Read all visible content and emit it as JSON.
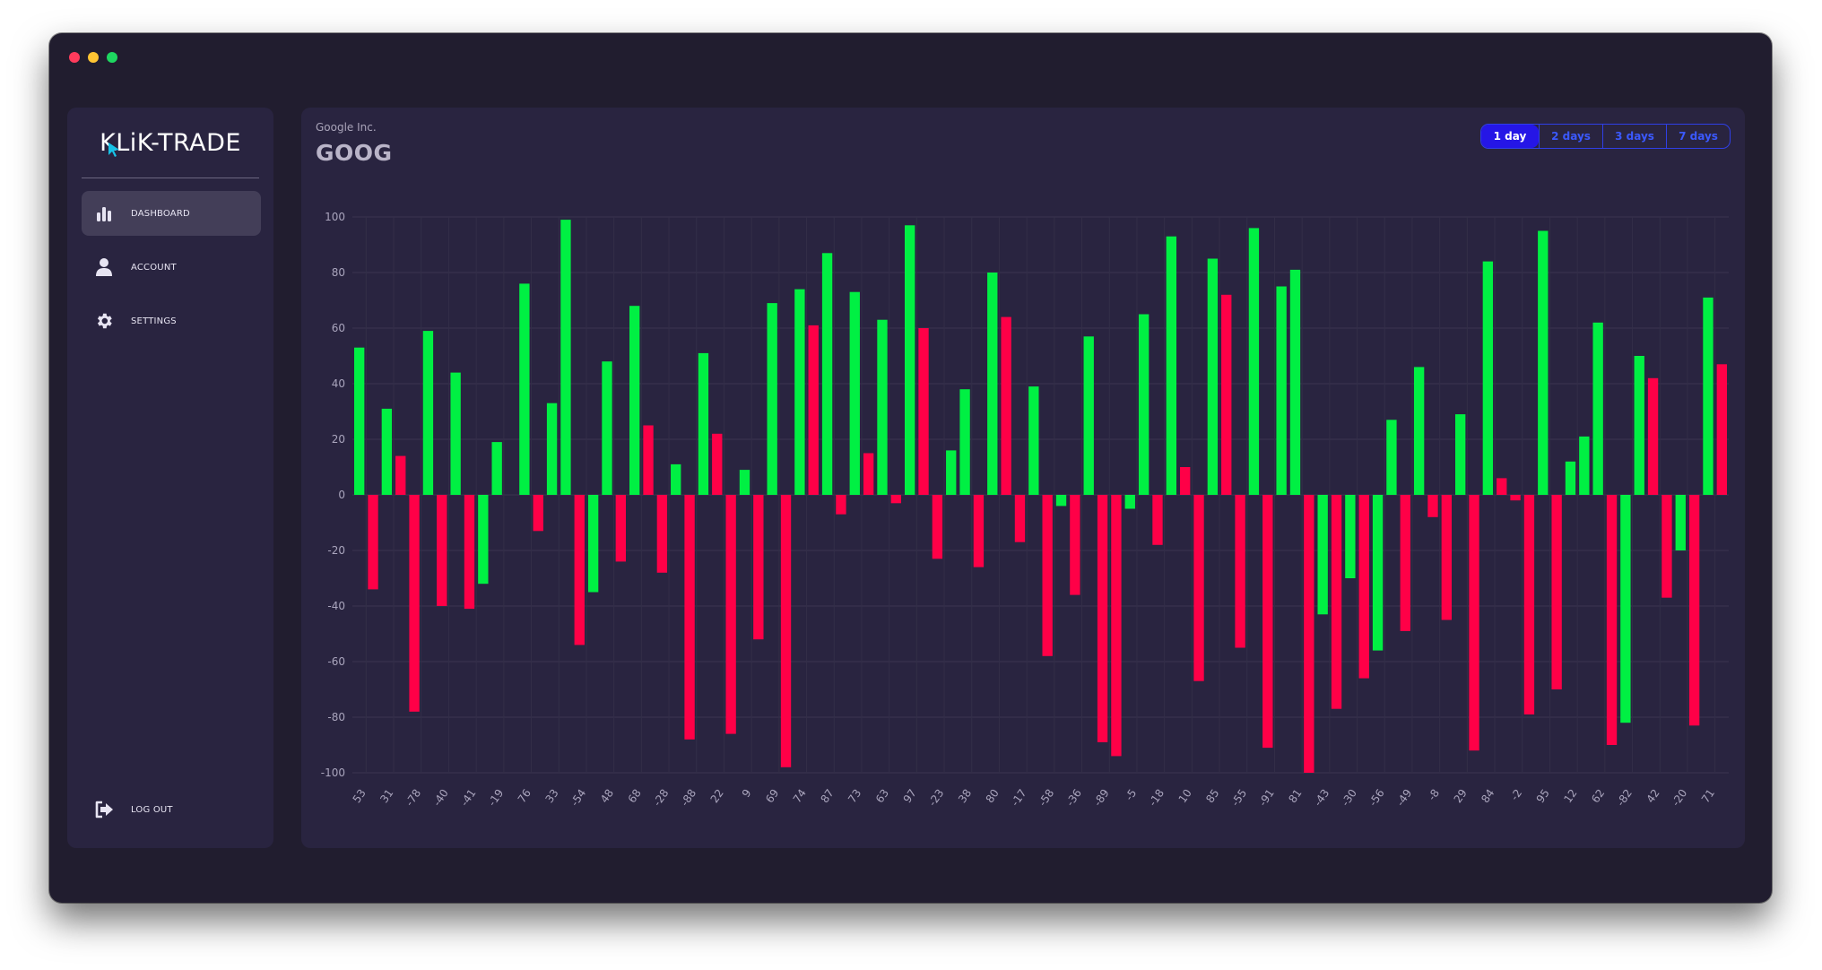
{
  "window": {
    "traffic_lights": [
      "#ff3b5c",
      "#ffc533",
      "#1ed760"
    ]
  },
  "sidebar": {
    "logo_text": "KLiK-TRADE",
    "items": [
      {
        "label": "DASHBOARD",
        "icon": "bar-chart-icon",
        "active": true
      },
      {
        "label": "ACCOUNT",
        "icon": "user-icon",
        "active": false
      },
      {
        "label": "SETTINGS",
        "icon": "gear-icon",
        "active": false
      }
    ],
    "logout_label": "LOG OUT",
    "logout_icon": "logout-icon"
  },
  "main": {
    "company": "Google Inc.",
    "ticker": "GOOG",
    "ranges": [
      {
        "label": "1 day",
        "active": true
      },
      {
        "label": "2 days",
        "active": false
      },
      {
        "label": "3 days",
        "active": false
      },
      {
        "label": "7 days",
        "active": false
      }
    ]
  },
  "colors": {
    "up": "#00f043",
    "down": "#ff0047",
    "accent": "#2516e6"
  },
  "chart_data": {
    "type": "bar",
    "title": "",
    "xlabel": "",
    "ylabel": "",
    "ylim": [
      -100,
      100
    ],
    "yticks": [
      100,
      80,
      60,
      40,
      20,
      0,
      -20,
      -40,
      -60,
      -80,
      -100
    ],
    "grid": true,
    "categories": [
      "53",
      "31",
      "-78",
      "-40",
      "-41",
      "-19",
      "76",
      "33",
      "-54",
      "48",
      "68",
      "-28",
      "-88",
      "22",
      "9",
      "69",
      "74",
      "87",
      "73",
      "63",
      "97",
      "-23",
      "38",
      "80",
      "-17",
      "-58",
      "-36",
      "-89",
      "-5",
      "-18",
      "10",
      "85",
      "-55",
      "-91",
      "81",
      "-43",
      "-30",
      "-56",
      "-49",
      "-8",
      "29",
      "84",
      "-2",
      "95",
      "12",
      "62",
      "-82",
      "42",
      "-20",
      "71"
    ],
    "bars": [
      {
        "value": 53,
        "color": "up"
      },
      {
        "value": -34,
        "color": "down"
      },
      {
        "value": 31,
        "color": "up"
      },
      {
        "value": 14,
        "color": "down"
      },
      {
        "value": -78,
        "color": "down"
      },
      {
        "value": 59,
        "color": "up"
      },
      {
        "value": -40,
        "color": "down"
      },
      {
        "value": 44,
        "color": "up"
      },
      {
        "value": -41,
        "color": "down"
      },
      {
        "value": -32,
        "color": "up"
      },
      {
        "value": 19,
        "color": "up"
      },
      {
        "value": 0,
        "color": "up"
      },
      {
        "value": 76,
        "color": "up"
      },
      {
        "value": -13,
        "color": "down"
      },
      {
        "value": 33,
        "color": "up"
      },
      {
        "value": 99,
        "color": "up"
      },
      {
        "value": -54,
        "color": "down"
      },
      {
        "value": -35,
        "color": "up"
      },
      {
        "value": 48,
        "color": "up"
      },
      {
        "value": -24,
        "color": "down"
      },
      {
        "value": 68,
        "color": "up"
      },
      {
        "value": 25,
        "color": "down"
      },
      {
        "value": -28,
        "color": "down"
      },
      {
        "value": 11,
        "color": "up"
      },
      {
        "value": -88,
        "color": "down"
      },
      {
        "value": 51,
        "color": "up"
      },
      {
        "value": 22,
        "color": "down"
      },
      {
        "value": -86,
        "color": "down"
      },
      {
        "value": 9,
        "color": "up"
      },
      {
        "value": -52,
        "color": "down"
      },
      {
        "value": 69,
        "color": "up"
      },
      {
        "value": -98,
        "color": "down"
      },
      {
        "value": 74,
        "color": "up"
      },
      {
        "value": 61,
        "color": "down"
      },
      {
        "value": 87,
        "color": "up"
      },
      {
        "value": -7,
        "color": "down"
      },
      {
        "value": 73,
        "color": "up"
      },
      {
        "value": 15,
        "color": "down"
      },
      {
        "value": 63,
        "color": "up"
      },
      {
        "value": -3,
        "color": "down"
      },
      {
        "value": 97,
        "color": "up"
      },
      {
        "value": 60,
        "color": "down"
      },
      {
        "value": -23,
        "color": "down"
      },
      {
        "value": 16,
        "color": "up"
      },
      {
        "value": 38,
        "color": "up"
      },
      {
        "value": -26,
        "color": "down"
      },
      {
        "value": 80,
        "color": "up"
      },
      {
        "value": 64,
        "color": "down"
      },
      {
        "value": -17,
        "color": "down"
      },
      {
        "value": 39,
        "color": "up"
      },
      {
        "value": -58,
        "color": "down"
      },
      {
        "value": -4,
        "color": "up"
      },
      {
        "value": -36,
        "color": "down"
      },
      {
        "value": 57,
        "color": "up"
      },
      {
        "value": -89,
        "color": "down"
      },
      {
        "value": -94,
        "color": "down"
      },
      {
        "value": -5,
        "color": "up"
      },
      {
        "value": 65,
        "color": "up"
      },
      {
        "value": -18,
        "color": "down"
      },
      {
        "value": 93,
        "color": "up"
      },
      {
        "value": 10,
        "color": "down"
      },
      {
        "value": -67,
        "color": "down"
      },
      {
        "value": 85,
        "color": "up"
      },
      {
        "value": 72,
        "color": "down"
      },
      {
        "value": -55,
        "color": "down"
      },
      {
        "value": 96,
        "color": "up"
      },
      {
        "value": -91,
        "color": "down"
      },
      {
        "value": 75,
        "color": "up"
      },
      {
        "value": 81,
        "color": "up"
      },
      {
        "value": -100,
        "color": "down"
      },
      {
        "value": -43,
        "color": "up"
      },
      {
        "value": -77,
        "color": "down"
      },
      {
        "value": -30,
        "color": "up"
      },
      {
        "value": -66,
        "color": "down"
      },
      {
        "value": -56,
        "color": "up"
      },
      {
        "value": 27,
        "color": "up"
      },
      {
        "value": -49,
        "color": "down"
      },
      {
        "value": 46,
        "color": "up"
      },
      {
        "value": -8,
        "color": "down"
      },
      {
        "value": -45,
        "color": "down"
      },
      {
        "value": 29,
        "color": "up"
      },
      {
        "value": -92,
        "color": "down"
      },
      {
        "value": 84,
        "color": "up"
      },
      {
        "value": 6,
        "color": "down"
      },
      {
        "value": -2,
        "color": "down"
      },
      {
        "value": -79,
        "color": "down"
      },
      {
        "value": 95,
        "color": "up"
      },
      {
        "value": -70,
        "color": "down"
      },
      {
        "value": 12,
        "color": "up"
      },
      {
        "value": 21,
        "color": "up"
      },
      {
        "value": 62,
        "color": "up"
      },
      {
        "value": -90,
        "color": "down"
      },
      {
        "value": -82,
        "color": "up"
      },
      {
        "value": 50,
        "color": "up"
      },
      {
        "value": 42,
        "color": "down"
      },
      {
        "value": -37,
        "color": "down"
      },
      {
        "value": -20,
        "color": "up"
      },
      {
        "value": -83,
        "color": "down"
      },
      {
        "value": 71,
        "color": "up"
      },
      {
        "value": 47,
        "color": "down"
      }
    ]
  }
}
